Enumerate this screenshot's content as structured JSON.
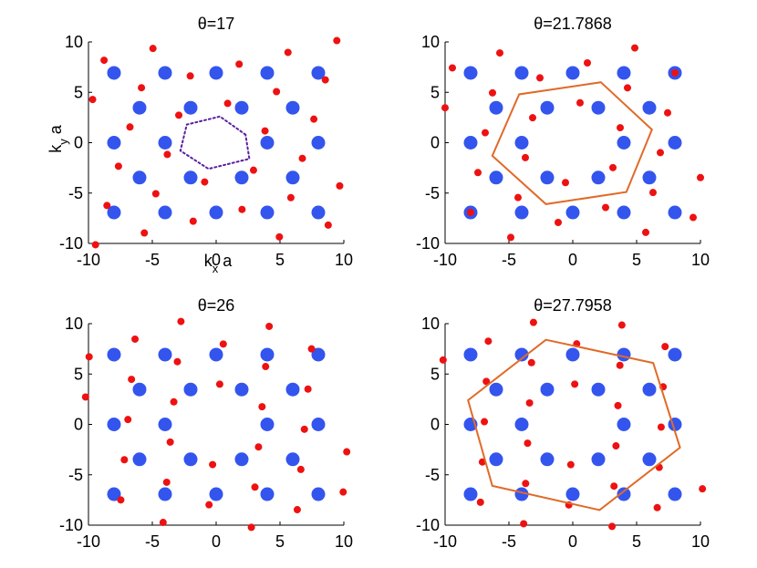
{
  "colors": {
    "blue": "#3355ee",
    "red": "#ee1111",
    "purple": "#5a1fa0",
    "orange": "#e06a28"
  },
  "chart_data": [
    {
      "type": "scatter",
      "title": "θ=17",
      "xlabel": "k",
      "xlabel_sub": "x",
      "xlabel_suffix": " a",
      "ylabel": "k",
      "ylabel_sub": "y",
      "ylabel_suffix": " a",
      "xlim": [
        -10,
        10
      ],
      "ylim": [
        -10,
        10
      ],
      "xticks": [
        "-10",
        "-5",
        "0",
        "5",
        "10"
      ],
      "yticks": [
        "10",
        "5",
        "0",
        "-5",
        "-10"
      ],
      "show_xlabel": true,
      "show_ylabel": true,
      "rotation_deg": 17,
      "boundary": {
        "style": "dotted",
        "color": "purple",
        "points": [
          [
            2.3,
            0.8
          ],
          [
            0.3,
            2.6
          ],
          [
            -2.3,
            1.8
          ],
          [
            -2.8,
            -0.8
          ],
          [
            -0.6,
            -2.6
          ],
          [
            2.6,
            -1.6
          ]
        ]
      }
    },
    {
      "type": "scatter",
      "title": "θ=21.7868",
      "xlim": [
        -10,
        10
      ],
      "ylim": [
        -10,
        10
      ],
      "xticks": [
        "-10",
        "-5",
        "0",
        "5",
        "10"
      ],
      "yticks": [
        "10",
        "5",
        "0",
        "-5",
        "-10"
      ],
      "show_xlabel": false,
      "show_ylabel": false,
      "rotation_deg": 21.7868,
      "boundary": {
        "style": "solid",
        "color": "orange",
        "points": [
          [
            2.2,
            6
          ],
          [
            6.2,
            1.3
          ],
          [
            4.2,
            -4.9
          ],
          [
            -2.1,
            -6.1
          ],
          [
            -6.3,
            -1.3
          ],
          [
            -4.2,
            4.8
          ]
        ]
      }
    },
    {
      "type": "scatter",
      "title": "θ=26",
      "xlim": [
        -10,
        10
      ],
      "ylim": [
        -10,
        10
      ],
      "xticks": [
        "-10",
        "-5",
        "0",
        "5",
        "10"
      ],
      "yticks": [
        "10",
        "5",
        "0",
        "-5",
        "-10"
      ],
      "show_xlabel": false,
      "show_ylabel": false,
      "rotation_deg": 26,
      "boundary": null
    },
    {
      "type": "scatter",
      "title": "θ=27.7958",
      "xlim": [
        -10,
        10
      ],
      "ylim": [
        -10,
        10
      ],
      "xticks": [
        "-10",
        "-5",
        "0",
        "5",
        "10"
      ],
      "yticks": [
        "10",
        "5",
        "0",
        "-5",
        "-10"
      ],
      "show_xlabel": false,
      "show_ylabel": false,
      "rotation_deg": 27.7958,
      "boundary": {
        "style": "solid",
        "color": "orange",
        "points": [
          [
            -2.1,
            8.4
          ],
          [
            6.3,
            6.1
          ],
          [
            8.4,
            -2.3
          ],
          [
            2.1,
            -8.5
          ],
          [
            -6.3,
            -6.1
          ],
          [
            -8.2,
            2.4
          ]
        ]
      }
    }
  ],
  "lattice": {
    "a1": [
      2.0,
      3.464
    ],
    "a2": [
      4.0,
      0.0
    ],
    "hole_radius": 2.2
  }
}
